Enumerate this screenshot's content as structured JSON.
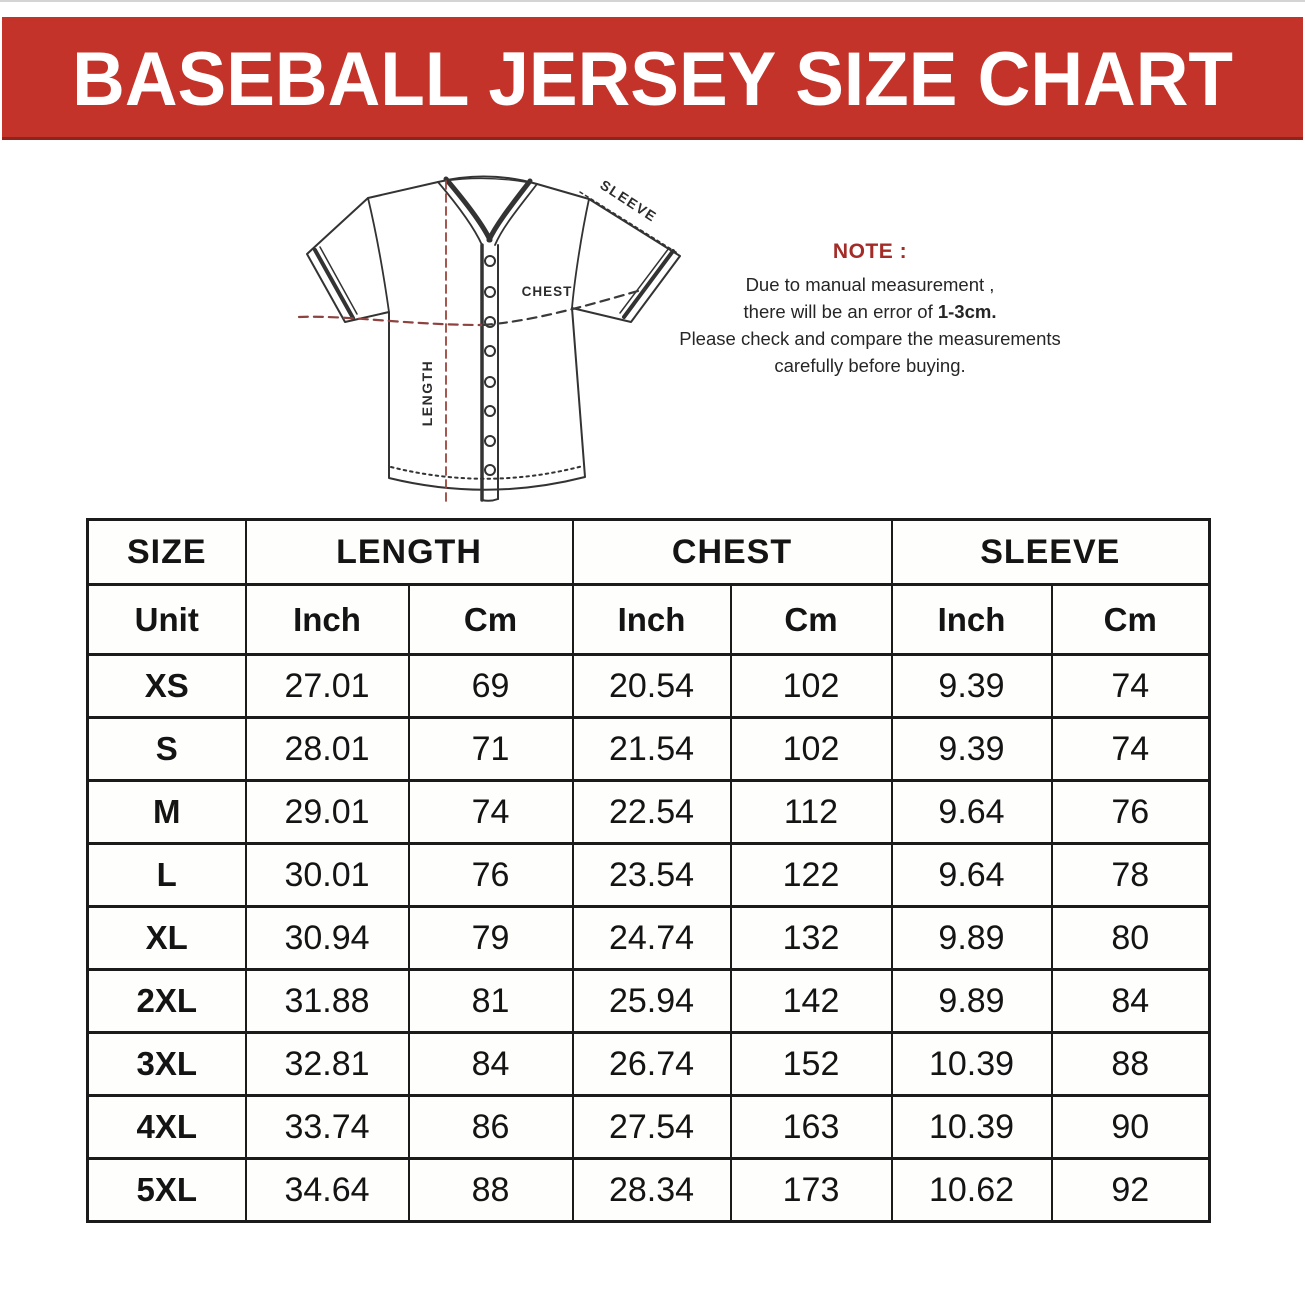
{
  "banner": {
    "title": "BASEBALL JERSEY SIZE CHART",
    "bg_color": "#c4332a",
    "shadow_color": "#8e241c",
    "text_color": "#ffffff"
  },
  "diagram": {
    "labels": {
      "sleeve": "SLEEVE",
      "chest": "CHEST",
      "length": "LENGTH"
    },
    "outline_color": "#333333",
    "measure_line_color": "#8d4440"
  },
  "note": {
    "heading": "NOTE :",
    "heading_color": "#a32c28",
    "line1": "Due to manual measurement ,",
    "line2_prefix": "there will be an error of ",
    "line2_bold": "1-3cm.",
    "line3": "Please check and compare the measurements",
    "line4": "carefully before buying."
  },
  "table": {
    "col_groups": [
      "SIZE",
      "LENGTH",
      "CHEST",
      "SLEEVE"
    ],
    "unit_row": [
      "Unit",
      "Inch",
      "Cm",
      "Inch",
      "Cm",
      "Inch",
      "Cm"
    ],
    "rows": [
      {
        "size": "XS",
        "values": [
          "27.01",
          "69",
          "20.54",
          "102",
          "9.39",
          "74"
        ]
      },
      {
        "size": "S",
        "values": [
          "28.01",
          "71",
          "21.54",
          "102",
          "9.39",
          "74"
        ]
      },
      {
        "size": "M",
        "values": [
          "29.01",
          "74",
          "22.54",
          "112",
          "9.64",
          "76"
        ]
      },
      {
        "size": "L",
        "values": [
          "30.01",
          "76",
          "23.54",
          "122",
          "9.64",
          "78"
        ]
      },
      {
        "size": "XL",
        "values": [
          "30.94",
          "79",
          "24.74",
          "132",
          "9.89",
          "80"
        ]
      },
      {
        "size": "2XL",
        "values": [
          "31.88",
          "81",
          "25.94",
          "142",
          "9.89",
          "84"
        ]
      },
      {
        "size": "3XL",
        "values": [
          "32.81",
          "84",
          "26.74",
          "152",
          "10.39",
          "88"
        ]
      },
      {
        "size": "4XL",
        "values": [
          "33.74",
          "86",
          "27.54",
          "163",
          "10.39",
          "90"
        ]
      },
      {
        "size": "5XL",
        "values": [
          "34.64",
          "88",
          "28.34",
          "173",
          "10.62",
          "92"
        ]
      }
    ]
  }
}
